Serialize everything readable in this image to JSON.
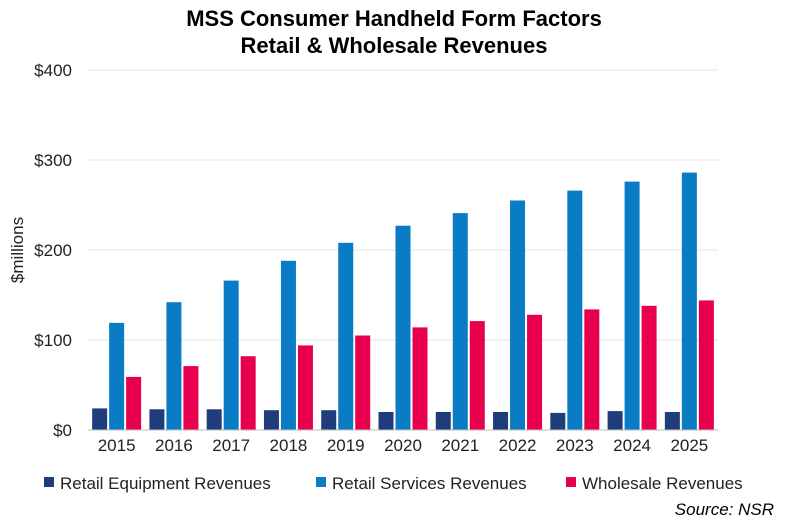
{
  "chart_data": {
    "type": "bar",
    "title": "MSS Consumer Handheld Form Factors",
    "subtitle": "Retail & Wholesale Revenues",
    "ylabel": "$millions",
    "xlabel": "",
    "ylim": [
      0,
      400
    ],
    "yticks": [
      "$0",
      "$100",
      "$200",
      "$300",
      "$400"
    ],
    "ytick_values": [
      0,
      100,
      200,
      300,
      400
    ],
    "grid": true,
    "legend_position": "bottom",
    "categories": [
      "2015",
      "2016",
      "2017",
      "2018",
      "2019",
      "2020",
      "2021",
      "2022",
      "2023",
      "2024",
      "2025"
    ],
    "series": [
      {
        "name": "Retail Equipment Revenues",
        "color": "#1f3d7a",
        "values": [
          24,
          23,
          23,
          22,
          22,
          20,
          20,
          20,
          19,
          21,
          20
        ]
      },
      {
        "name": "Retail Services Revenues",
        "color": "#0a7cc5",
        "values": [
          119,
          142,
          166,
          188,
          208,
          227,
          241,
          255,
          266,
          276,
          286
        ]
      },
      {
        "name": "Wholesale Revenues",
        "color": "#e8004e",
        "values": [
          59,
          71,
          82,
          94,
          105,
          114,
          121,
          128,
          134,
          138,
          144
        ]
      }
    ],
    "source": "Source: NSR"
  }
}
